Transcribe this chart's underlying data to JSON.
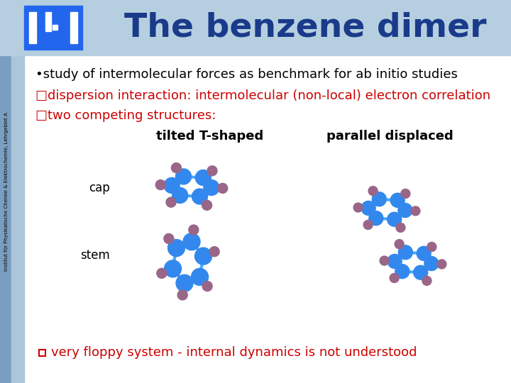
{
  "title": "The benzene dimer",
  "title_color": "#1a3a8a",
  "title_fontsize": 34,
  "bg_color": "#ffffff",
  "sidebar_dark": "#8aaccc",
  "sidebar_light": "#b8d0e4",
  "header_color": "#b8d0e4",
  "logo_color": "#2266ee",
  "sidebar_text": "Institut für Physikalische Chemie & Elektrochemie, Lehrgebiet A",
  "bullet1": "•study of intermolecular forces as benchmark for ab initio studies",
  "bullet1_color": "#000000",
  "bullet2": "□dispersion interaction: intermolecular (non-local) electron correlation",
  "bullet2_color": "#cc0000",
  "bullet3": "□two competing structures:",
  "bullet3_color": "#cc0000",
  "label_tilted": "tilted T-shaped",
  "label_parallel": "parallel displaced",
  "label_cap": "cap",
  "label_stem": "stem",
  "label_color": "#000000",
  "bottom_text": "very floppy system - internal dynamics is not understood",
  "bottom_color": "#cc0000",
  "atom_blue": "#3388ee",
  "atom_purple": "#996688",
  "bond_color": "#44aaff"
}
